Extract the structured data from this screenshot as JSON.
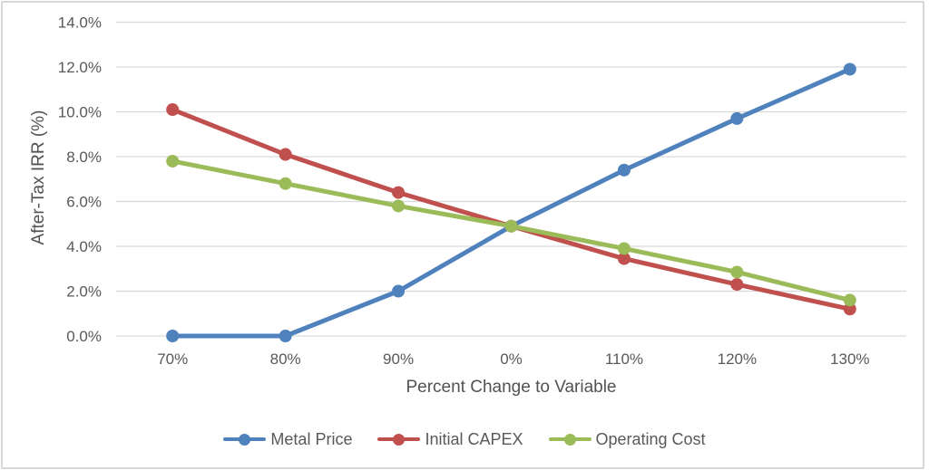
{
  "chart_data": {
    "type": "line",
    "title": "",
    "xlabel": "Percent Change to Variable",
    "ylabel": "After-Tax IRR (%)",
    "categories": [
      "70%",
      "80%",
      "90%",
      "0%",
      "110%",
      "120%",
      "130%"
    ],
    "series": [
      {
        "name": "Metal Price",
        "color": "#4F81BD",
        "values": [
          0.0,
          0.0,
          2.0,
          4.9,
          7.4,
          9.7,
          11.9
        ]
      },
      {
        "name": "Initial CAPEX",
        "color": "#C0504D",
        "values": [
          10.1,
          8.1,
          6.4,
          4.9,
          3.45,
          2.3,
          1.2
        ]
      },
      {
        "name": "Operating Cost",
        "color": "#9BBB59",
        "values": [
          7.8,
          6.8,
          5.8,
          4.9,
          3.9,
          2.85,
          1.6
        ]
      }
    ],
    "y_axis": {
      "min": 0,
      "max": 14,
      "step": 2,
      "tick_labels": [
        "0.0%",
        "2.0%",
        "4.0%",
        "6.0%",
        "8.0%",
        "10.0%",
        "12.0%",
        "14.0%"
      ]
    },
    "grid": true,
    "legend_position": "bottom",
    "marker": "circle"
  },
  "style": {
    "gridline_color": "#D9D9D9",
    "tick_label_color": "#595959",
    "axis_title_color": "#525252",
    "frame_color": "#D8D8D8",
    "background": "#FFFFFF"
  }
}
